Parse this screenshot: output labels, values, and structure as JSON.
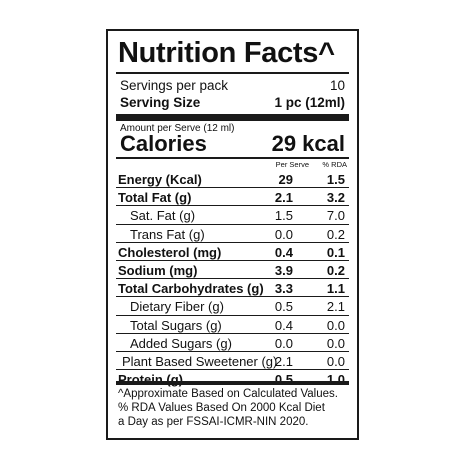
{
  "title": "Nutrition Facts^",
  "servings": {
    "label": "Servings per pack",
    "value": "10"
  },
  "serving_size": {
    "label": "Serving Size",
    "value": "1 pc (12ml)"
  },
  "amount_per_serve": "Amount per Serve (12 ml)",
  "calories": {
    "label": "Calories",
    "value": "29 kcal"
  },
  "column_headers": {
    "per_serve": "Per Serve",
    "rda": "% RDA"
  },
  "rows": [
    {
      "name": "Energy (Kcal)",
      "per_serve": "29",
      "rda": "1.5",
      "bold": true
    },
    {
      "name": "Total Fat (g)",
      "per_serve": "2.1",
      "rda": "3.2",
      "bold": true
    },
    {
      "name": "Sat. Fat (g)",
      "per_serve": "1.5",
      "rda": "7.0",
      "bold": false
    },
    {
      "name": "Trans Fat (g)",
      "per_serve": "0.0",
      "rda": "0.2",
      "bold": false
    },
    {
      "name": "Cholesterol (mg)",
      "per_serve": "0.4",
      "rda": "0.1",
      "bold": true
    },
    {
      "name": "Sodium (mg)",
      "per_serve": "3.9",
      "rda": "0.2",
      "bold": true
    },
    {
      "name": "Total Carbohydrates (g)",
      "per_serve": "3.3",
      "rda": "1.1",
      "bold": true
    },
    {
      "name": "Dietary Fiber (g)",
      "per_serve": "0.5",
      "rda": "2.1",
      "bold": false
    },
    {
      "name": "Total Sugars (g)",
      "per_serve": "0.4",
      "rda": "0.0",
      "bold": false
    },
    {
      "name": "Added Sugars (g)",
      "per_serve": "0.0",
      "rda": "0.0",
      "bold": false
    },
    {
      "name": "Plant Based Sweetener (g)",
      "per_serve": "2.1",
      "rda": "0.0",
      "bold": false
    },
    {
      "name": "Protein (g)",
      "per_serve": "0.5",
      "rda": "1.0",
      "bold": true
    }
  ],
  "footnote": [
    "^Approximate Based on Calculated Values.",
    " % RDA Values Based On 2000 Kcal Diet",
    " a Day as per FSSAI-ICMR-NIN 2020."
  ]
}
